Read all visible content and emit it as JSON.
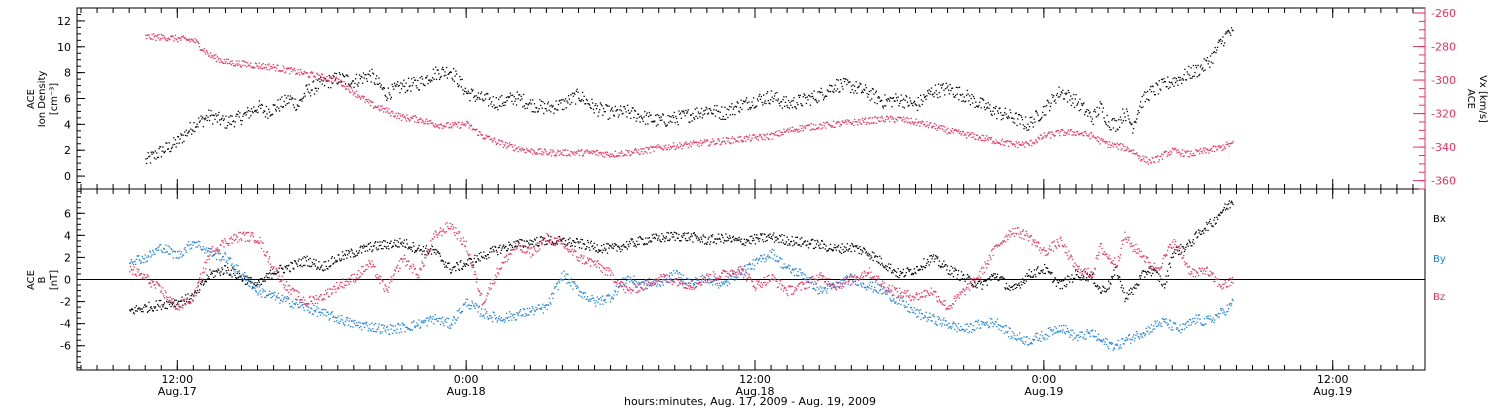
{
  "chart_data": [
    {
      "type": "scatter",
      "panel": "top",
      "ylabel_lines": [
        "ACE",
        "Ion Density",
        "[cm⁻³]"
      ],
      "ylim": [
        -1,
        13
      ],
      "y_ticks": [
        0,
        2,
        4,
        6,
        8,
        10,
        12
      ],
      "y2label_lines": [
        "ACE",
        "Vx [km/s]"
      ],
      "y2lim": [
        -365,
        -257
      ],
      "y2_ticks": [
        -360,
        -340,
        -320,
        -300,
        -280,
        -260
      ],
      "y2_tick_labels": [
        "-360",
        "-340",
        "-320",
        "-300",
        "-280",
        "-260"
      ],
      "series": [
        {
          "axis": "left",
          "color": "#000000",
          "x": [
            2,
            3,
            4,
            5,
            6,
            8,
            10,
            12,
            14,
            16,
            17,
            18,
            20,
            21,
            22,
            24,
            26,
            28,
            30,
            32,
            34,
            36,
            38,
            40,
            41,
            42,
            44,
            46,
            48,
            49,
            50,
            52,
            54,
            56,
            58,
            60,
            62,
            64,
            66,
            68,
            70,
            72,
            74,
            76,
            78,
            80,
            82,
            84,
            86,
            88,
            90,
            92,
            94,
            96,
            98,
            100,
            102,
            104,
            106,
            108,
            110,
            112,
            114,
            116,
            118,
            120,
            121,
            122,
            123,
            124,
            125,
            126,
            127,
            128,
            129,
            130,
            131,
            132,
            133,
            134,
            135,
            136,
            137,
            137.5
          ],
          "y": [
            1.2,
            1.6,
            2.0,
            2.3,
            2.7,
            4.0,
            4.7,
            4.2,
            4.6,
            5.4,
            5.0,
            5.3,
            6.0,
            5.5,
            6.6,
            7.2,
            7.6,
            7.4,
            7.9,
            6.4,
            7.0,
            7.2,
            8.0,
            8.2,
            7.4,
            6.5,
            6.0,
            5.7,
            6.1,
            5.9,
            5.6,
            5.3,
            5.6,
            6.3,
            5.3,
            4.9,
            5.0,
            4.6,
            4.3,
            4.5,
            4.8,
            5.2,
            4.9,
            5.5,
            5.9,
            6.2,
            5.6,
            5.9,
            6.3,
            7.1,
            7.0,
            6.5,
            5.8,
            6.0,
            5.5,
            6.6,
            6.8,
            6.3,
            5.6,
            5.0,
            4.6,
            4.0,
            5.2,
            6.6,
            5.8,
            4.5,
            5.4,
            4.2,
            4.0,
            5.0,
            3.9,
            5.7,
            6.4,
            6.8,
            7.1,
            7.4,
            7.6,
            8.0,
            8.2,
            8.6,
            9.3,
            10.4,
            11.2,
            11.0
          ]
        },
        {
          "axis": "right",
          "color": "#e8325f",
          "x": [
            2,
            4,
            6,
            8,
            10,
            12,
            14,
            16,
            18,
            20,
            22,
            24,
            26,
            28,
            30,
            32,
            34,
            36,
            38,
            40,
            42,
            44,
            46,
            48,
            50,
            52,
            54,
            56,
            58,
            60,
            62,
            64,
            66,
            68,
            70,
            72,
            74,
            76,
            78,
            80,
            82,
            84,
            86,
            88,
            90,
            92,
            94,
            96,
            98,
            100,
            102,
            104,
            106,
            108,
            110,
            112,
            114,
            116,
            118,
            120,
            121,
            122,
            123,
            124,
            125,
            126,
            127,
            128,
            129,
            130,
            131,
            132,
            133,
            134,
            135,
            136,
            137,
            137.5
          ],
          "y": [
            -274,
            -274,
            -275,
            -276,
            -285,
            -289,
            -290,
            -291,
            -292,
            -294,
            -296,
            -298,
            -300,
            -307,
            -314,
            -318,
            -322,
            -323,
            -326,
            -327,
            -326,
            -333,
            -337,
            -340,
            -342,
            -343,
            -343,
            -343,
            -343,
            -344,
            -343,
            -342,
            -340,
            -339,
            -338,
            -337,
            -336,
            -335,
            -334,
            -333,
            -330,
            -328,
            -327,
            -326,
            -325,
            -324,
            -323,
            -323,
            -325,
            -327,
            -330,
            -332,
            -334,
            -336,
            -338,
            -338,
            -333,
            -331,
            -331,
            -333,
            -336,
            -338,
            -339,
            -340,
            -342,
            -346,
            -348,
            -347,
            -344,
            -342,
            -343,
            -344,
            -343,
            -342,
            -341,
            -340,
            -338,
            -338
          ]
        }
      ]
    },
    {
      "type": "scatter",
      "panel": "bottom",
      "ylabel_lines": [
        "ACE",
        "B",
        "[nT]"
      ],
      "ylim": [
        -8.2,
        8.2
      ],
      "y_ticks": [
        -6,
        -4,
        -2,
        0,
        2,
        4,
        6
      ],
      "zero_line": true,
      "legend": [
        "Bx",
        "By",
        "Bz"
      ],
      "series": [
        {
          "name": "Bx",
          "color": "#000000",
          "x": [
            0,
            2,
            4,
            6,
            8,
            10,
            12,
            14,
            16,
            18,
            20,
            22,
            24,
            26,
            28,
            30,
            32,
            34,
            36,
            38,
            40,
            42,
            44,
            46,
            48,
            50,
            52,
            54,
            56,
            58,
            60,
            62,
            64,
            66,
            68,
            70,
            72,
            74,
            76,
            78,
            80,
            82,
            84,
            86,
            88,
            90,
            92,
            94,
            96,
            98,
            100,
            102,
            104,
            106,
            108,
            110,
            112,
            114,
            116,
            118,
            120,
            121,
            122,
            123,
            124,
            125,
            126,
            127,
            128,
            129,
            130,
            131,
            132,
            133,
            134,
            135,
            136,
            137,
            137.5
          ],
          "y": [
            -2.8,
            -2.5,
            -2.2,
            -2.0,
            -1.5,
            0.5,
            1.0,
            0.2,
            -0.5,
            0.8,
            1.2,
            1.8,
            1.2,
            2.0,
            2.5,
            3.0,
            3.2,
            3.4,
            2.8,
            2.6,
            1.0,
            1.5,
            2.2,
            2.8,
            3.2,
            3.4,
            3.6,
            3.5,
            3.3,
            3.0,
            2.8,
            3.2,
            3.6,
            3.8,
            4.0,
            3.9,
            3.6,
            3.8,
            3.5,
            3.7,
            3.9,
            3.6,
            3.4,
            3.2,
            2.8,
            3.0,
            2.5,
            1.5,
            0.5,
            1.0,
            2.0,
            1.0,
            0.2,
            -0.5,
            0.5,
            -1.0,
            0.5,
            1.0,
            -0.5,
            0.5,
            0.3,
            -1.0,
            -0.5,
            1.0,
            -1.5,
            -1.0,
            0.2,
            1.0,
            0.5,
            -0.5,
            2.5,
            2.8,
            3.2,
            4.0,
            4.8,
            5.2,
            6.2,
            6.8,
            7.2
          ]
        },
        {
          "name": "By",
          "color": "#1e82dc",
          "x": [
            0,
            2,
            4,
            6,
            8,
            10,
            12,
            14,
            16,
            18,
            20,
            22,
            24,
            26,
            28,
            30,
            32,
            34,
            36,
            38,
            40,
            42,
            44,
            46,
            48,
            50,
            52,
            54,
            56,
            58,
            60,
            62,
            64,
            66,
            68,
            70,
            72,
            74,
            76,
            78,
            80,
            82,
            84,
            86,
            88,
            90,
            92,
            94,
            96,
            98,
            100,
            102,
            104,
            106,
            108,
            110,
            112,
            114,
            116,
            118,
            120,
            121,
            122,
            123,
            124,
            125,
            126,
            127,
            128,
            129,
            130,
            131,
            132,
            133,
            134,
            135,
            136,
            137,
            137.5
          ],
          "y": [
            1.8,
            2.0,
            3.0,
            2.2,
            3.5,
            2.5,
            2.0,
            0.5,
            -1.0,
            -1.5,
            -2.0,
            -2.5,
            -3.0,
            -3.5,
            -4.0,
            -4.2,
            -4.5,
            -4.3,
            -4.0,
            -3.5,
            -4.0,
            -2.0,
            -3.0,
            -3.5,
            -3.2,
            -2.8,
            -2.5,
            0.5,
            -1.0,
            -2.0,
            -1.5,
            0.2,
            -0.5,
            -0.2,
            0.5,
            -0.3,
            0.2,
            -0.5,
            0.8,
            1.5,
            2.5,
            1.0,
            0.5,
            -1.0,
            -0.5,
            0.2,
            -0.5,
            -1.0,
            -2.0,
            -3.0,
            -3.5,
            -4.0,
            -4.5,
            -4.0,
            -3.8,
            -5.0,
            -5.5,
            -5.0,
            -4.2,
            -5.2,
            -4.8,
            -5.5,
            -5.8,
            -6.0,
            -5.5,
            -5.2,
            -4.8,
            -4.5,
            -4.0,
            -3.8,
            -4.2,
            -4.5,
            -4.0,
            -3.5,
            -3.8,
            -3.5,
            -3.0,
            -2.5,
            -2.0
          ]
        },
        {
          "name": "Bz",
          "color": "#e8325f",
          "x": [
            0,
            2,
            4,
            6,
            8,
            10,
            12,
            14,
            16,
            18,
            20,
            22,
            24,
            26,
            28,
            30,
            32,
            34,
            36,
            38,
            40,
            42,
            44,
            46,
            48,
            50,
            52,
            54,
            56,
            58,
            60,
            62,
            64,
            66,
            68,
            70,
            72,
            74,
            76,
            78,
            80,
            82,
            84,
            86,
            88,
            90,
            92,
            94,
            96,
            98,
            100,
            102,
            104,
            106,
            108,
            110,
            112,
            114,
            116,
            118,
            120,
            121,
            122,
            123,
            124,
            125,
            126,
            127,
            128,
            129,
            130,
            131,
            132,
            133,
            134,
            135,
            136,
            137,
            137.5
          ],
          "y": [
            1.0,
            0.2,
            -1.0,
            -2.5,
            -1.5,
            2.5,
            3.5,
            4.0,
            3.8,
            1.0,
            -1.0,
            -2.0,
            -1.5,
            -0.5,
            0.2,
            1.5,
            -1.0,
            2.0,
            0.5,
            4.0,
            5.0,
            3.0,
            -2.0,
            1.0,
            3.0,
            2.5,
            3.8,
            3.2,
            2.0,
            1.5,
            0.5,
            -1.0,
            -0.5,
            0.2,
            0.0,
            -0.5,
            0.2,
            0.5,
            1.0,
            -0.5,
            0.2,
            -1.0,
            -0.5,
            0.3,
            -0.5,
            0.0,
            0.8,
            -0.5,
            -1.2,
            -1.5,
            -1.0,
            -2.5,
            -1.0,
            0.5,
            3.0,
            4.5,
            4.0,
            2.5,
            3.5,
            1.0,
            0.5,
            3.0,
            2.0,
            1.5,
            4.0,
            3.0,
            2.5,
            1.5,
            1.0,
            2.0,
            3.5,
            2.5,
            1.0,
            0.5,
            1.0,
            0.2,
            -0.5,
            -0.3,
            0.0
          ]
        }
      ]
    }
  ],
  "x_axis": {
    "xlim": [
      -6.5,
      161.5
    ],
    "ticks": [
      {
        "x": 6,
        "time": "12:00",
        "date": "Aug.17"
      },
      {
        "x": 42,
        "time": "0:00",
        "date": "Aug.18"
      },
      {
        "x": 78,
        "time": "12:00",
        "date": "Aug.18"
      },
      {
        "x": 114,
        "time": "0:00",
        "date": "Aug.19"
      },
      {
        "x": 150,
        "time": "12:00",
        "date": "Aug.19"
      }
    ],
    "title": "hours:minutes, Aug. 17, 2009 - Aug. 19, 2009"
  }
}
